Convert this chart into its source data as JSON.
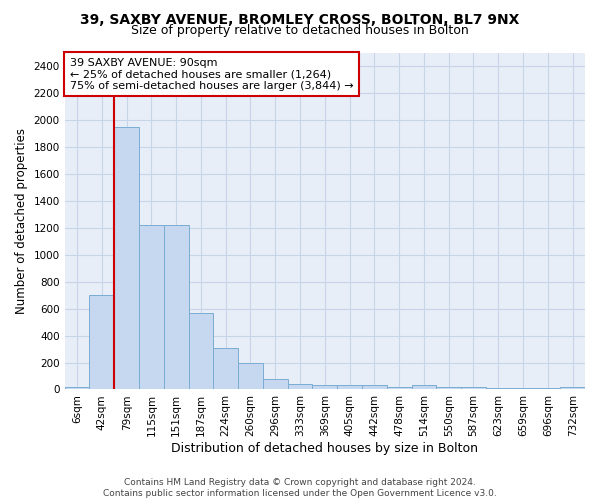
{
  "title1": "39, SAXBY AVENUE, BROMLEY CROSS, BOLTON, BL7 9NX",
  "title2": "Size of property relative to detached houses in Bolton",
  "xlabel": "Distribution of detached houses by size in Bolton",
  "ylabel": "Number of detached properties",
  "categories": [
    "6sqm",
    "42sqm",
    "79sqm",
    "115sqm",
    "151sqm",
    "187sqm",
    "224sqm",
    "260sqm",
    "296sqm",
    "333sqm",
    "369sqm",
    "405sqm",
    "442sqm",
    "478sqm",
    "514sqm",
    "550sqm",
    "587sqm",
    "623sqm",
    "659sqm",
    "696sqm",
    "732sqm"
  ],
  "values": [
    20,
    700,
    1950,
    1220,
    1220,
    570,
    310,
    200,
    80,
    40,
    30,
    35,
    30,
    20,
    30,
    20,
    20,
    10,
    10,
    10,
    20
  ],
  "bar_color": "#c5d8f0",
  "bar_edge_color": "#7aadd4",
  "vline_x_index": 2,
  "vline_color": "#cc0000",
  "annotation_line1": "39 SAXBY AVENUE: 90sqm",
  "annotation_line2": "← 25% of detached houses are smaller (1,264)",
  "annotation_line3": "75% of semi-detached houses are larger (3,844) →",
  "annotation_box_color": "white",
  "annotation_box_edge": "#cc0000",
  "ylim": [
    0,
    2500
  ],
  "yticks": [
    0,
    200,
    400,
    600,
    800,
    1000,
    1200,
    1400,
    1600,
    1800,
    2000,
    2200,
    2400
  ],
  "bg_color": "#e8eef8",
  "grid_color": "#c8d4e8",
  "footer": "Contains HM Land Registry data © Crown copyright and database right 2024.\nContains public sector information licensed under the Open Government Licence v3.0.",
  "title1_fontsize": 10,
  "title2_fontsize": 9,
  "xlabel_fontsize": 9,
  "ylabel_fontsize": 8.5,
  "tick_fontsize": 7.5,
  "annotation_fontsize": 8,
  "footer_fontsize": 6.5
}
